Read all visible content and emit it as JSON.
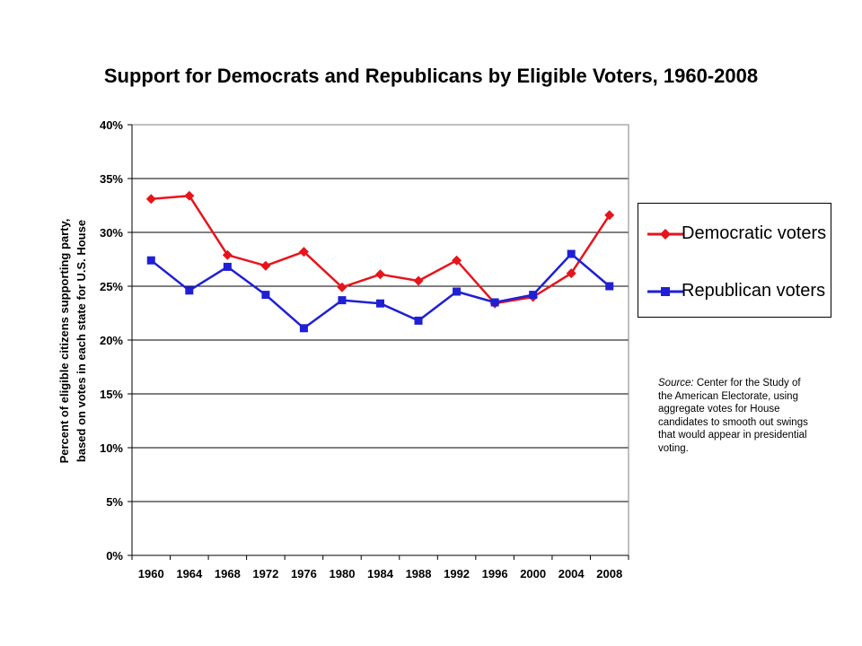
{
  "chart_data": {
    "type": "line",
    "title": "Support for Democrats and Republicans by Eligible Voters, 1960-2008",
    "xlabel": "",
    "ylabel_lines": [
      "Percent of eligible citizens supporting party,",
      "based on votes in each state for U.S. House"
    ],
    "x": [
      "1960",
      "1964",
      "1968",
      "1972",
      "1976",
      "1980",
      "1984",
      "1988",
      "1992",
      "1996",
      "2000",
      "2004",
      "2008"
    ],
    "ylim": [
      0,
      40
    ],
    "yticks": [
      0,
      5,
      10,
      15,
      20,
      25,
      30,
      35,
      40
    ],
    "ytick_labels": [
      "0%",
      "5%",
      "10%",
      "15%",
      "20%",
      "25%",
      "30%",
      "35%",
      "40%"
    ],
    "grid": "horizontal",
    "legend_position": "right",
    "series": [
      {
        "name": "Democratic voters",
        "color": "#e8141b",
        "marker": "diamond",
        "values": [
          33.1,
          33.4,
          27.9,
          26.9,
          28.2,
          24.9,
          26.1,
          25.5,
          27.4,
          23.4,
          24.0,
          26.2,
          31.6
        ]
      },
      {
        "name": "Republican voters",
        "color": "#1f1fd6",
        "marker": "square",
        "values": [
          27.4,
          24.6,
          26.8,
          24.2,
          21.1,
          23.7,
          23.4,
          21.8,
          24.5,
          23.5,
          24.2,
          28.0,
          25.0
        ]
      }
    ]
  },
  "source_note": {
    "label": "Source:",
    "text": " Center for the Study of the American Electorate, using aggregate votes for House candidates to smooth out swings that would appear in presidential voting."
  }
}
